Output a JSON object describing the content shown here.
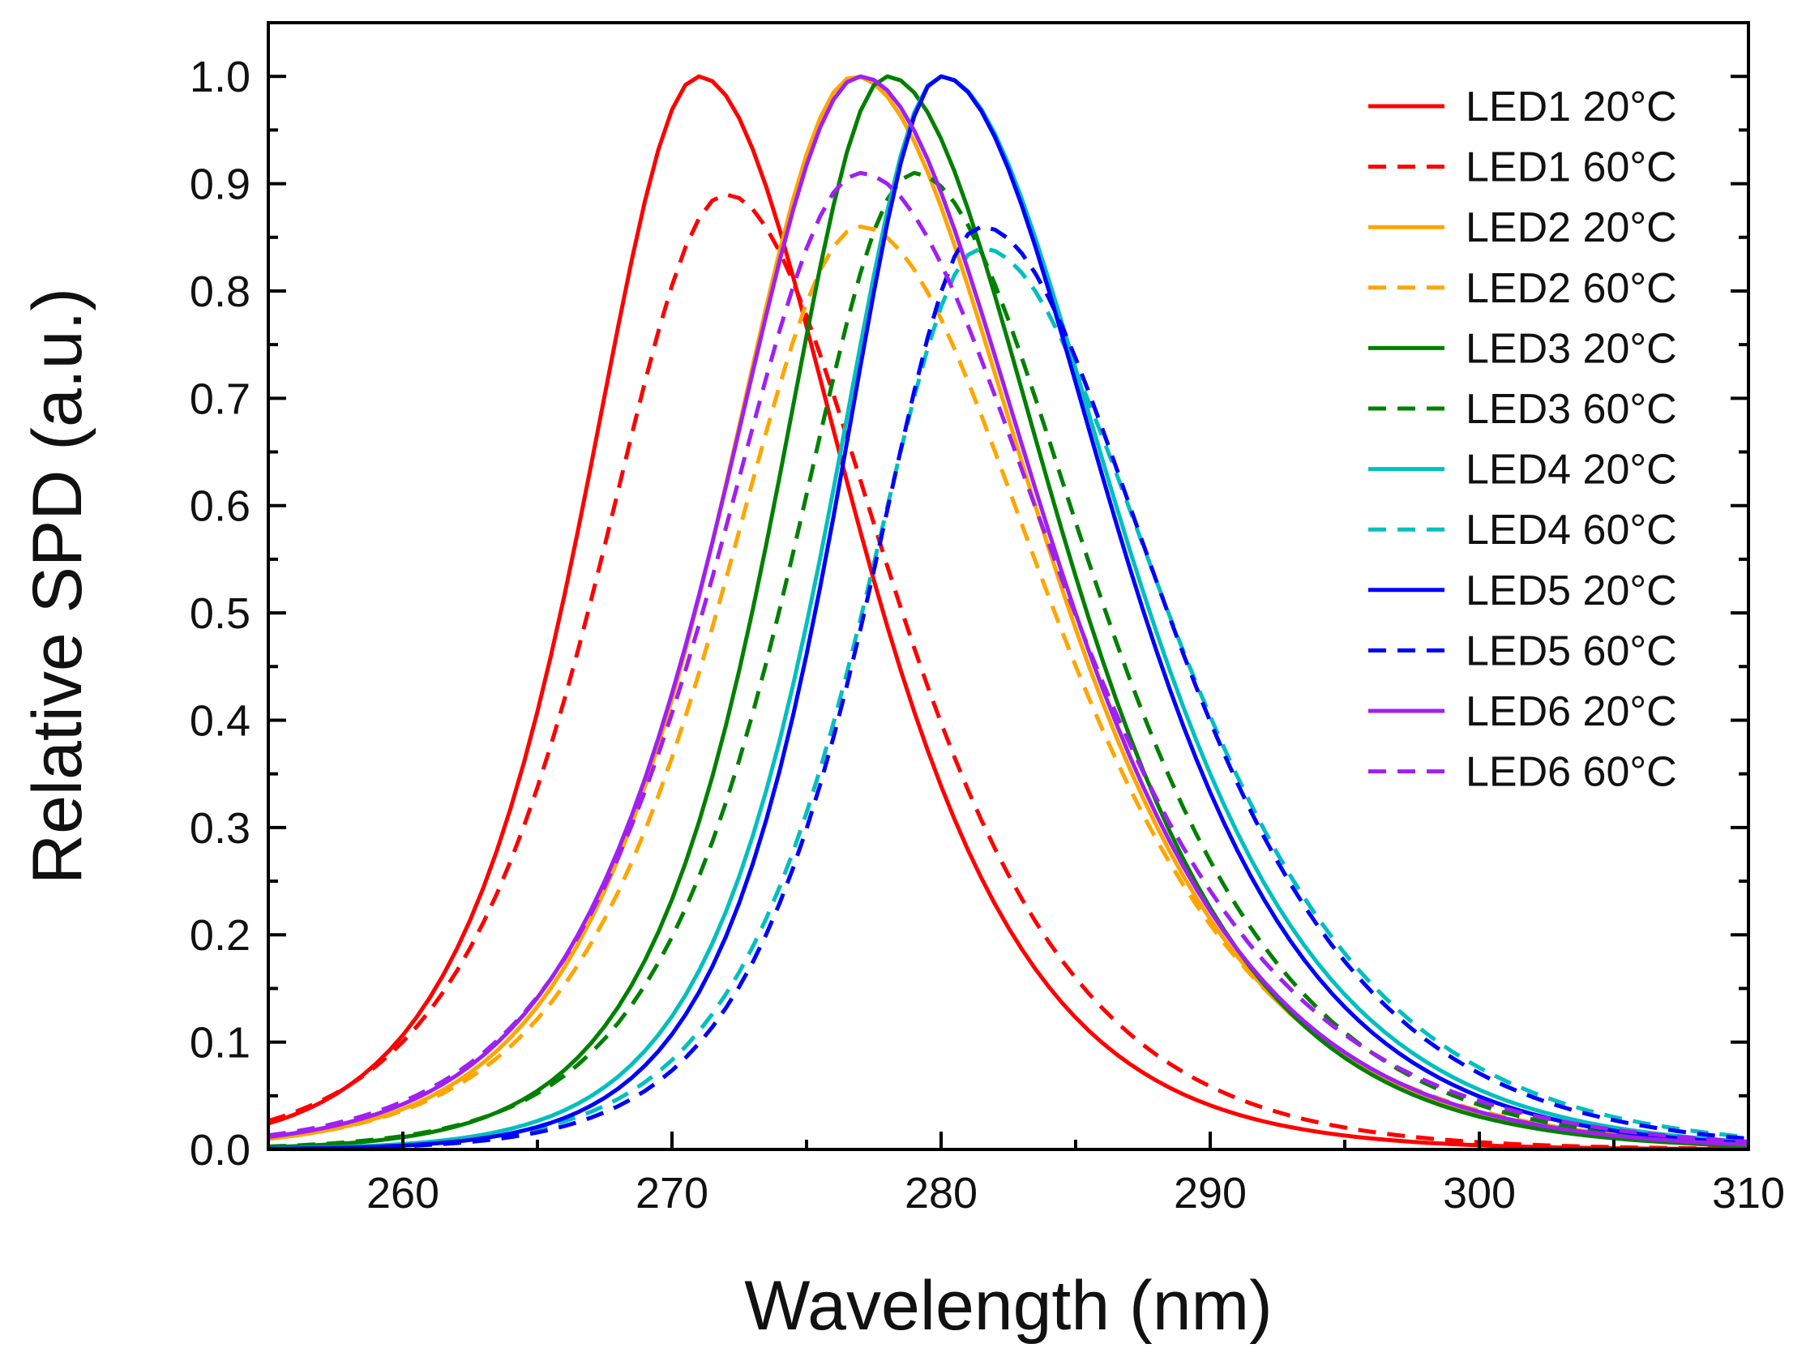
{
  "chart_data": {
    "type": "line",
    "title": "",
    "xlabel": "Wavelength (nm)",
    "ylabel": "Relative SPD (a.u.)",
    "xlim": [
      255,
      310
    ],
    "ylim": [
      0,
      1.05
    ],
    "xticks": [
      260,
      270,
      280,
      290,
      300,
      310
    ],
    "yticks": [
      0.0,
      0.1,
      0.2,
      0.3,
      0.4,
      0.5,
      0.6,
      0.7,
      0.8,
      0.9,
      1.0
    ],
    "xtick_labels": [
      "260",
      "270",
      "280",
      "290",
      "300",
      "310"
    ],
    "ytick_labels": [
      "0.0",
      "0.1",
      "0.2",
      "0.3",
      "0.4",
      "0.5",
      "0.6",
      "0.7",
      "0.8",
      "0.9",
      "1.0"
    ],
    "grid": false,
    "legend_position": "top-right",
    "series": [
      {
        "name": "LED1 20°C",
        "color": "#ff0000",
        "style": "solid",
        "peak": 271,
        "height": 1.0,
        "w_left": 4.5,
        "w_right": 6.0
      },
      {
        "name": "LED1 60°C",
        "color": "#ff0000",
        "style": "dashed",
        "peak": 272,
        "height": 0.89,
        "w_left": 5.0,
        "w_right": 6.4
      },
      {
        "name": "LED2 20°C",
        "color": "#ffa500",
        "style": "solid",
        "peak": 276.8,
        "height": 1.0,
        "w_left": 5.2,
        "w_right": 7.0
      },
      {
        "name": "LED2 60°C",
        "color": "#ffa500",
        "style": "dashed",
        "peak": 277,
        "height": 0.86,
        "w_left": 5.4,
        "w_right": 7.3
      },
      {
        "name": "LED3 20°C",
        "color": "#008000",
        "style": "solid",
        "peak": 278,
        "height": 1.0,
        "w_left": 4.4,
        "w_right": 6.5
      },
      {
        "name": "LED3 60°C",
        "color": "#008000",
        "style": "dashed",
        "peak": 279,
        "height": 0.91,
        "w_left": 4.8,
        "w_right": 6.8
      },
      {
        "name": "LED4 20°C",
        "color": "#00bfbf",
        "style": "solid",
        "peak": 280,
        "height": 1.0,
        "w_left": 4.3,
        "w_right": 6.8
      },
      {
        "name": "LED4 60°C",
        "color": "#00bfbf",
        "style": "dashed",
        "peak": 281.5,
        "height": 0.84,
        "w_left": 4.6,
        "w_right": 7.2
      },
      {
        "name": "LED5 20°C",
        "color": "#0000ff",
        "style": "solid",
        "peak": 280,
        "height": 1.0,
        "w_left": 4.1,
        "w_right": 6.6
      },
      {
        "name": "LED5 60°C",
        "color": "#0000ff",
        "style": "dashed",
        "peak": 281.5,
        "height": 0.86,
        "w_left": 4.4,
        "w_right": 7.0
      },
      {
        "name": "LED6 20°C",
        "color": "#a020f0",
        "style": "solid",
        "peak": 277,
        "height": 1.0,
        "w_left": 5.4,
        "w_right": 7.0
      },
      {
        "name": "LED6 60°C",
        "color": "#a020f0",
        "style": "dashed",
        "peak": 277,
        "height": 0.91,
        "w_left": 5.6,
        "w_right": 7.6
      }
    ]
  }
}
